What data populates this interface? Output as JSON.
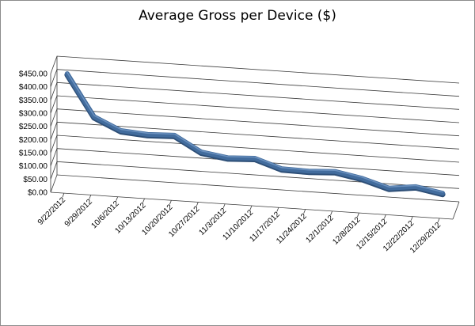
{
  "chart_data": {
    "type": "line",
    "title": "Average Gross per Device ($)",
    "xlabel": "",
    "ylabel": "",
    "ylim": [
      0,
      450
    ],
    "y_ticks": [
      "$0.00",
      "$50.00",
      "$100.00",
      "$150.00",
      "$200.00",
      "$250.00",
      "$300.00",
      "$350.00",
      "$400.00",
      "$450.00"
    ],
    "y_tick_values": [
      0,
      50,
      100,
      150,
      200,
      250,
      300,
      350,
      400,
      450
    ],
    "categories": [
      "9/22/2012",
      "9/29/2012",
      "10/6/2012",
      "10/13/2012",
      "10/20/2012",
      "10/27/2012",
      "11/3/2012",
      "11/10/2012",
      "11/17/2012",
      "11/24/2012",
      "12/1/2012",
      "12/8/2012",
      "12/15/2012",
      "12/22/2012",
      "12/29/2012"
    ],
    "values": [
      420,
      264,
      218,
      210,
      214,
      157,
      142,
      147,
      114,
      112,
      117,
      98,
      68,
      80,
      62
    ],
    "grid": true,
    "style": "3d-line",
    "line_color": "#426c9d"
  }
}
